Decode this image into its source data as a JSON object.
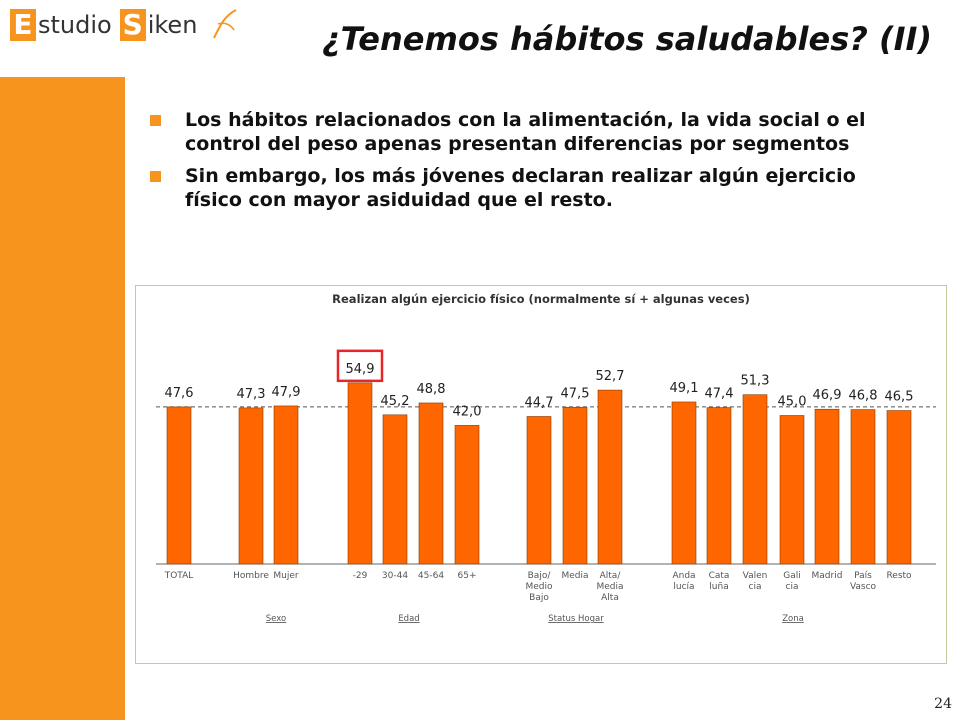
{
  "header": {
    "logo_text_1": "E",
    "logo_text_2": "studio",
    "logo_text_3": "S",
    "logo_text_4": "iken",
    "title": "¿Tenemos hábitos saludables? (II)"
  },
  "bullets": [
    "Los hábitos relacionados con la alimentación, la vida social o el control del peso apenas presentan diferencias por segmentos",
    "Sin embargo, los más jóvenes declaran realizar algún ejercicio físico con mayor asiduidad que el resto."
  ],
  "page_number": "24",
  "colors": {
    "accent": "#f7941d",
    "bar": "#ff6600",
    "highlight": "#e8262a"
  },
  "chart_data": {
    "type": "bar",
    "title": "Realizan algún ejercicio físico (normalmente sí + algunas veces)",
    "reference_value": 47.6,
    "ylim": [
      0,
      60
    ],
    "bars": [
      {
        "label": [
          "TOTAL"
        ],
        "value": 47.6,
        "value_label": "47,6"
      },
      {
        "label": [
          "Hombre"
        ],
        "value": 47.3,
        "value_label": "47,3"
      },
      {
        "label": [
          "Mujer"
        ],
        "value": 47.9,
        "value_label": "47,9"
      },
      {
        "label": [
          "-29"
        ],
        "value": 54.9,
        "value_label": "54,9",
        "highlight": true
      },
      {
        "label": [
          "30-44"
        ],
        "value": 45.2,
        "value_label": "45,2"
      },
      {
        "label": [
          "45-64"
        ],
        "value": 48.8,
        "value_label": "48,8"
      },
      {
        "label": [
          "65+"
        ],
        "value": 42.0,
        "value_label": "42,0"
      },
      {
        "label": [
          "Bajo/",
          "Medio",
          "Bajo"
        ],
        "value": 44.7,
        "value_label": "44,7"
      },
      {
        "label": [
          "Media"
        ],
        "value": 47.5,
        "value_label": "47,5"
      },
      {
        "label": [
          "Alta/",
          "Media",
          "Alta"
        ],
        "value": 52.7,
        "value_label": "52,7"
      },
      {
        "label": [
          "Anda",
          "lucía"
        ],
        "value": 49.1,
        "value_label": "49,1"
      },
      {
        "label": [
          "Cata",
          "luña"
        ],
        "value": 47.4,
        "value_label": "47,4"
      },
      {
        "label": [
          "Valen",
          "cia"
        ],
        "value": 51.3,
        "value_label": "51,3"
      },
      {
        "label": [
          "Gali",
          "cia"
        ],
        "value": 45.0,
        "value_label": "45,0"
      },
      {
        "label": [
          "Madrid"
        ],
        "value": 46.9,
        "value_label": "46,9"
      },
      {
        "label": [
          "País",
          "Vasco"
        ],
        "value": 46.8,
        "value_label": "46,8"
      },
      {
        "label": [
          "Resto"
        ],
        "value": 46.5,
        "value_label": "46,5"
      }
    ],
    "groups": [
      {
        "name": "Sexo"
      },
      {
        "name": "Edad"
      },
      {
        "name": "Status Hogar"
      },
      {
        "name": "Zona"
      }
    ]
  }
}
